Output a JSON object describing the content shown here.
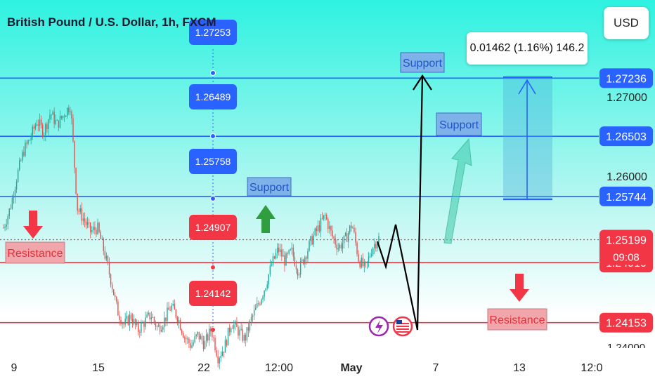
{
  "title": "British Pound / U.S. Dollar, 1h, FXCM",
  "currency_button": "USD",
  "measure_label": "0.01462 (1.16%) 146.2",
  "colors": {
    "blue": "#2962ff",
    "red": "#f23645",
    "bull": "#26a69a",
    "bear": "#ef5350",
    "support_fill": "#7fb2e8",
    "resistance_fill": "#f0a6aa"
  },
  "chart_data": {
    "type": "candlestick",
    "x_ticks": [
      "9",
      "15",
      "22",
      "12:00",
      "May",
      "7",
      "13",
      "12:0"
    ],
    "y_ticks": [
      "1.27000",
      "1.26000"
    ],
    "current_price": "1.25199",
    "countdown": "09:08",
    "last_label_partial": "1.24000",
    "levels": [
      {
        "value": "1.27236",
        "color": "blue"
      },
      {
        "value": "1.26503",
        "color": "blue"
      },
      {
        "value": "1.25744",
        "color": "blue"
      },
      {
        "value": "1.24910",
        "color": "red"
      },
      {
        "value": "1.24153",
        "color": "red"
      }
    ],
    "stacked_labels": [
      {
        "value": "1.27253",
        "color": "blue"
      },
      {
        "value": "1.26489",
        "color": "blue"
      },
      {
        "value": "1.25758",
        "color": "blue"
      },
      {
        "value": "1.24907",
        "color": "red"
      },
      {
        "value": "1.24142",
        "color": "red"
      }
    ],
    "annotations": {
      "support": [
        "Support",
        "Support",
        "Support"
      ],
      "resistance": [
        "Resistance",
        "Resistance"
      ]
    },
    "price_path": [
      1.2535,
      1.256,
      1.26,
      1.2632,
      1.2648,
      1.267,
      1.2655,
      1.268,
      1.2665,
      1.2678,
      1.269,
      1.256,
      1.2545,
      1.253,
      1.2535,
      1.2505,
      1.247,
      1.243,
      1.2412,
      1.2424,
      1.2405,
      1.2416,
      1.2425,
      1.2408,
      1.2419,
      1.2436,
      1.2422,
      1.2398,
      1.2386,
      1.24,
      1.2388,
      1.2407,
      1.2372,
      1.2385,
      1.2416,
      1.2405,
      1.2394,
      1.242,
      1.2438,
      1.246,
      1.2488,
      1.2508,
      1.2493,
      1.2505,
      1.248,
      1.25,
      1.252,
      1.2535,
      1.255,
      1.2525,
      1.251,
      1.252,
      1.254,
      1.2495,
      1.2482,
      1.251,
      1.2522
    ]
  }
}
